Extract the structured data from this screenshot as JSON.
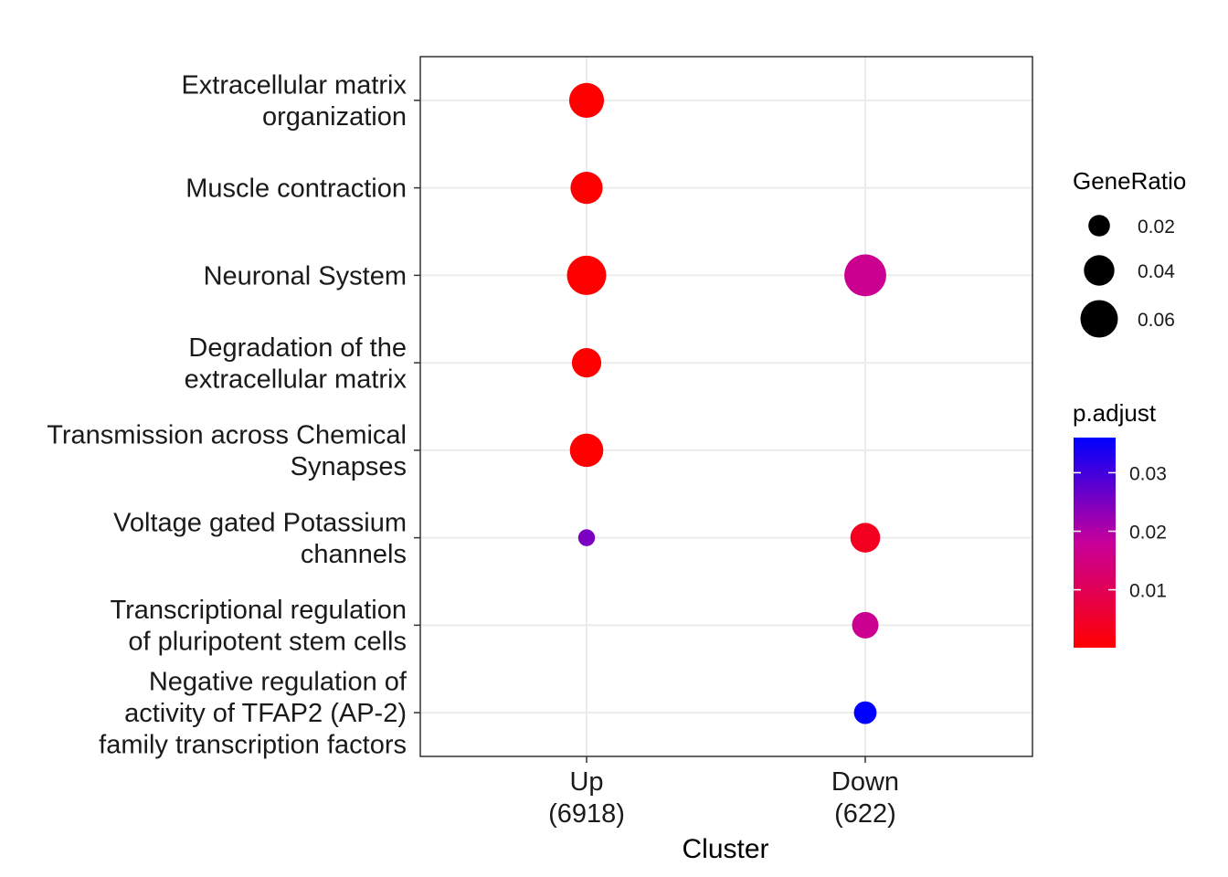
{
  "chart_data": {
    "type": "scatter",
    "xlabel": "Cluster",
    "x_categories": [
      {
        "line1": "Up",
        "line2": "(6918)"
      },
      {
        "line1": "Down",
        "line2": "(622)"
      }
    ],
    "y_categories": [
      {
        "lines": [
          "Extracellular matrix",
          "organization"
        ]
      },
      {
        "lines": [
          "Muscle contraction"
        ]
      },
      {
        "lines": [
          "Neuronal System"
        ]
      },
      {
        "lines": [
          "Degradation of the",
          "extracellular matrix"
        ]
      },
      {
        "lines": [
          "Transmission across Chemical",
          "Synapses"
        ]
      },
      {
        "lines": [
          "Voltage gated Potassium",
          "channels"
        ]
      },
      {
        "lines": [
          "Transcriptional regulation",
          "of pluripotent stem cells"
        ]
      },
      {
        "lines": [
          "Negative regulation of",
          "activity of TFAP2 (AP-2)",
          "family transcription factors"
        ]
      }
    ],
    "points": [
      {
        "x": 0,
        "y": 0,
        "gene_ratio": 0.052,
        "p_adjust": 0.0001
      },
      {
        "x": 0,
        "y": 1,
        "gene_ratio": 0.044,
        "p_adjust": 0.0001
      },
      {
        "x": 0,
        "y": 2,
        "gene_ratio": 0.066,
        "p_adjust": 0.0001
      },
      {
        "x": 0,
        "y": 3,
        "gene_ratio": 0.037,
        "p_adjust": 0.0001
      },
      {
        "x": 0,
        "y": 4,
        "gene_ratio": 0.048,
        "p_adjust": 0.0001
      },
      {
        "x": 0,
        "y": 5,
        "gene_ratio": 0.012,
        "p_adjust": 0.025
      },
      {
        "x": 1,
        "y": 2,
        "gene_ratio": 0.075,
        "p_adjust": 0.017
      },
      {
        "x": 1,
        "y": 5,
        "gene_ratio": 0.038,
        "p_adjust": 0.004
      },
      {
        "x": 1,
        "y": 6,
        "gene_ratio": 0.03,
        "p_adjust": 0.017
      },
      {
        "x": 1,
        "y": 7,
        "gene_ratio": 0.022,
        "p_adjust": 0.036
      }
    ],
    "size_legend": {
      "title": "GeneRatio",
      "entries": [
        {
          "label": "0.02",
          "value": 0.02
        },
        {
          "label": "0.04",
          "value": 0.04
        },
        {
          "label": "0.06",
          "value": 0.06
        }
      ]
    },
    "color_legend": {
      "title": "p.adjust",
      "min": 0.0001,
      "max": 0.036,
      "low_color": "#ff0000",
      "high_color": "#0000ff",
      "ticks": [
        {
          "label": "0.01",
          "value": 0.01
        },
        {
          "label": "0.02",
          "value": 0.02
        },
        {
          "label": "0.03",
          "value": 0.03
        }
      ]
    },
    "grid": true,
    "legend_position": "right"
  }
}
